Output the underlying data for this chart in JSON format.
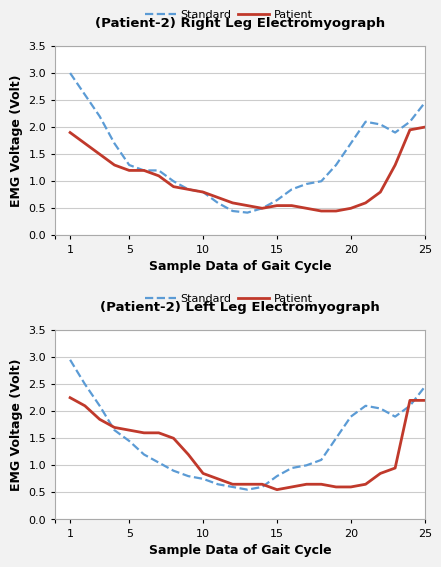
{
  "top": {
    "title": "(Patient-2) Right Leg Electromyograph",
    "standard_x": [
      1,
      2,
      3,
      4,
      5,
      6,
      7,
      8,
      9,
      10,
      11,
      12,
      13,
      14,
      15,
      16,
      17,
      18,
      19,
      20,
      21,
      22,
      23,
      24,
      25
    ],
    "standard_y": [
      3.0,
      2.6,
      2.2,
      1.7,
      1.3,
      1.2,
      1.2,
      1.0,
      0.85,
      0.8,
      0.6,
      0.45,
      0.42,
      0.5,
      0.65,
      0.85,
      0.95,
      1.0,
      1.3,
      1.7,
      2.1,
      2.05,
      1.9,
      2.1,
      2.45
    ],
    "patient_x": [
      1,
      2,
      3,
      4,
      5,
      6,
      7,
      8,
      9,
      10,
      11,
      12,
      13,
      14,
      15,
      16,
      17,
      18,
      19,
      20,
      21,
      22,
      23,
      24,
      25
    ],
    "patient_y": [
      1.9,
      1.7,
      1.5,
      1.3,
      1.2,
      1.2,
      1.1,
      0.9,
      0.85,
      0.8,
      0.7,
      0.6,
      0.55,
      0.5,
      0.55,
      0.55,
      0.5,
      0.45,
      0.45,
      0.5,
      0.6,
      0.8,
      1.3,
      1.95,
      2.0
    ]
  },
  "bottom": {
    "title": "(Patient-2) Left Leg Electromyograph",
    "standard_x": [
      1,
      2,
      3,
      4,
      5,
      6,
      7,
      8,
      9,
      10,
      11,
      12,
      13,
      14,
      15,
      16,
      17,
      18,
      19,
      20,
      21,
      22,
      23,
      24,
      25
    ],
    "standard_y": [
      2.95,
      2.5,
      2.1,
      1.65,
      1.45,
      1.2,
      1.05,
      0.9,
      0.8,
      0.75,
      0.65,
      0.6,
      0.55,
      0.6,
      0.8,
      0.95,
      1.0,
      1.1,
      1.5,
      1.9,
      2.1,
      2.05,
      1.9,
      2.1,
      2.45
    ],
    "patient_x": [
      1,
      2,
      3,
      4,
      5,
      6,
      7,
      8,
      9,
      10,
      11,
      12,
      13,
      14,
      15,
      16,
      17,
      18,
      19,
      20,
      21,
      22,
      23,
      24,
      25
    ],
    "patient_y": [
      2.25,
      2.1,
      1.85,
      1.7,
      1.65,
      1.6,
      1.6,
      1.5,
      1.2,
      0.85,
      0.75,
      0.65,
      0.65,
      0.65,
      0.55,
      0.6,
      0.65,
      0.65,
      0.6,
      0.6,
      0.65,
      0.85,
      0.95,
      2.2,
      2.2
    ]
  },
  "xlabel": "Sample Data of Gait Cycle",
  "ylabel": "EMG Voltage (Volt)",
  "ylim": [
    0,
    3.5
  ],
  "xlim": [
    0,
    25
  ],
  "yticks": [
    0,
    0.5,
    1,
    1.5,
    2,
    2.5,
    3,
    3.5
  ],
  "xticks": [
    0,
    1,
    5,
    10,
    15,
    20,
    25
  ],
  "xtick_labels": [
    "",
    "1",
    "5",
    "10",
    "15",
    "20",
    "25"
  ],
  "standard_color": "#5B9BD5",
  "patient_color": "#C0392B",
  "standard_linestyle": "--",
  "patient_linestyle": "-",
  "linewidth_standard": 1.6,
  "linewidth_patient": 2.0,
  "background_color": "#F2F2F2",
  "plot_bg_color": "#FFFFFF",
  "border_color": "#AAAAAA",
  "grid_color": "#CCCCCC"
}
